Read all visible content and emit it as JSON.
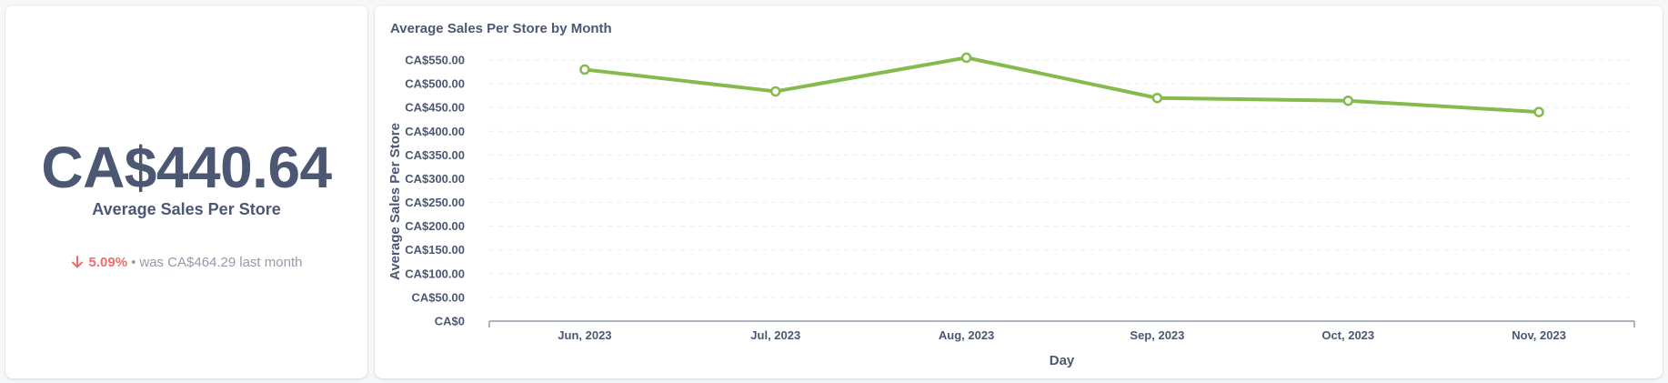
{
  "scalar": {
    "value": "CA$440.64",
    "label": "Average Sales Per Store",
    "change_pct": "5.09%",
    "change_direction": "down",
    "separator": "•",
    "previous_text": "was CA$464.29",
    "period_text": "last month",
    "down_color": "#ed6e6e"
  },
  "chart": {
    "title": "Average Sales Per Store by Month"
  },
  "chart_data": {
    "type": "line",
    "title": "Average Sales Per Store by Month",
    "xlabel": "Day",
    "ylabel": "Average Sales Per Store",
    "categories": [
      "Jun, 2023",
      "Jul, 2023",
      "Aug, 2023",
      "Sep, 2023",
      "Oct, 2023",
      "Nov, 2023"
    ],
    "series": [
      {
        "values": [
          530,
          484,
          555,
          470,
          464.29,
          440.64
        ],
        "color": "#84bb4c"
      }
    ],
    "ylim": [
      0,
      550
    ],
    "yticks": [
      0,
      50,
      100,
      150,
      200,
      250,
      300,
      350,
      400,
      450,
      500,
      550
    ],
    "ytick_labels": [
      "CA$0",
      "CA$50.00",
      "CA$100.00",
      "CA$150.00",
      "CA$200.00",
      "CA$250.00",
      "CA$300.00",
      "CA$350.00",
      "CA$400.00",
      "CA$450.00",
      "CA$500.00",
      "CA$550.00"
    ],
    "grid": true,
    "legend": "none"
  }
}
